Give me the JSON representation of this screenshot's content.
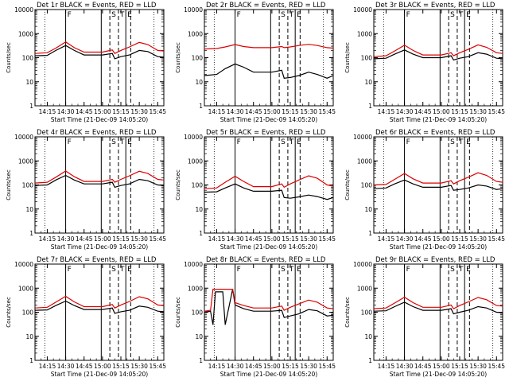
{
  "figure": {
    "title_suffix": "BLACK = Events, RED = LLD",
    "xlabel": "Start Time (21-Dec-09 14:05:20)",
    "ylabel": "Counts/sec",
    "x_tick_labels": [
      "14:15",
      "14:30",
      "14:45",
      "15:00",
      "15:15",
      "15:30",
      "15:45"
    ],
    "y_tick_labels": [
      "1",
      "10",
      "100",
      "1000",
      "10000"
    ],
    "marker_labels": [
      "F",
      "S",
      "T",
      "E"
    ],
    "colors": {
      "events": "#000000",
      "lld": "#dd0000",
      "axes": "#000000"
    }
  },
  "chart_data": [
    {
      "type": "line",
      "title": "Det 1r",
      "ylim": [
        1,
        10000
      ],
      "y_scale": "log",
      "x_range": [
        "14:05",
        "15:50"
      ],
      "x_tick_labels": [
        "14:15",
        "14:30",
        "14:45",
        "15:00",
        "15:15",
        "15:30",
        "15:45"
      ],
      "y_tick_labels": [
        "1",
        "10",
        "100",
        "1000",
        "10000"
      ],
      "markers": [
        {
          "label": "F",
          "time": "14:30"
        },
        {
          "label": "S",
          "time": "15:06"
        },
        {
          "label": "T",
          "time": "15:13"
        },
        {
          "label": "E",
          "time": "15:19"
        }
      ],
      "x": [
        "14:05",
        "14:15",
        "14:22",
        "14:30",
        "14:37",
        "14:45",
        "15:00",
        "15:08",
        "15:10",
        "15:15",
        "15:22",
        "15:30",
        "15:37",
        "15:45",
        "15:50"
      ],
      "series": [
        {
          "name": "Events",
          "values": [
            120,
            125,
            200,
            320,
            200,
            130,
            130,
            150,
            90,
            110,
            130,
            200,
            180,
            110,
            105
          ]
        },
        {
          "name": "LLD",
          "values": [
            150,
            160,
            250,
            450,
            260,
            170,
            170,
            210,
            150,
            200,
            280,
            430,
            350,
            200,
            190
          ]
        }
      ]
    },
    {
      "type": "line",
      "title": "Det 2r",
      "ylim": [
        1,
        10000
      ],
      "y_scale": "log",
      "x_range": [
        "14:05",
        "15:50"
      ],
      "x_tick_labels": [
        "14:15",
        "14:30",
        "14:45",
        "15:00",
        "15:15",
        "15:30",
        "15:45"
      ],
      "y_tick_labels": [
        "1",
        "10",
        "100",
        "1000",
        "10000"
      ],
      "markers": [
        {
          "label": "F",
          "time": "14:30"
        },
        {
          "label": "S",
          "time": "15:06"
        },
        {
          "label": "T",
          "time": "15:13"
        },
        {
          "label": "E",
          "time": "15:19"
        }
      ],
      "x": [
        "14:05",
        "14:15",
        "14:22",
        "14:30",
        "14:37",
        "14:45",
        "15:00",
        "15:08",
        "15:10",
        "15:15",
        "15:22",
        "15:30",
        "15:37",
        "15:45",
        "15:50"
      ],
      "series": [
        {
          "name": "Events",
          "values": [
            18,
            20,
            35,
            55,
            40,
            25,
            25,
            30,
            14,
            15,
            18,
            25,
            20,
            14,
            18
          ]
        },
        {
          "name": "LLD",
          "values": [
            230,
            240,
            280,
            350,
            290,
            260,
            260,
            290,
            260,
            280,
            320,
            360,
            320,
            260,
            250
          ]
        }
      ]
    },
    {
      "type": "line",
      "title": "Det 3r",
      "ylim": [
        1,
        10000
      ],
      "y_scale": "log",
      "x_range": [
        "14:05",
        "15:50"
      ],
      "x_tick_labels": [
        "14:15",
        "14:30",
        "14:45",
        "15:00",
        "15:15",
        "15:30",
        "15:45"
      ],
      "y_tick_labels": [
        "1",
        "10",
        "100",
        "1000",
        "10000"
      ],
      "markers": [
        {
          "label": "F",
          "time": "14:30"
        },
        {
          "label": "S",
          "time": "15:06"
        },
        {
          "label": "T",
          "time": "15:13"
        },
        {
          "label": "E",
          "time": "15:19"
        }
      ],
      "x": [
        "14:05",
        "14:15",
        "14:22",
        "14:30",
        "14:37",
        "14:45",
        "15:00",
        "15:08",
        "15:10",
        "15:15",
        "15:22",
        "15:30",
        "15:37",
        "15:45",
        "15:50"
      ],
      "series": [
        {
          "name": "Events",
          "values": [
            90,
            95,
            140,
            210,
            140,
            100,
            100,
            120,
            80,
            95,
            110,
            160,
            140,
            95,
            90
          ]
        },
        {
          "name": "LLD",
          "values": [
            110,
            120,
            190,
            330,
            200,
            130,
            130,
            160,
            120,
            160,
            220,
            340,
            270,
            160,
            150
          ]
        }
      ]
    },
    {
      "type": "line",
      "title": "Det 4r",
      "ylim": [
        1,
        10000
      ],
      "y_scale": "log",
      "x_range": [
        "14:05",
        "15:50"
      ],
      "x_tick_labels": [
        "14:15",
        "14:30",
        "14:45",
        "15:00",
        "15:15",
        "15:30",
        "15:45"
      ],
      "y_tick_labels": [
        "1",
        "10",
        "100",
        "1000",
        "10000"
      ],
      "markers": [
        {
          "label": "F",
          "time": "14:30"
        },
        {
          "label": "S",
          "time": "15:06"
        },
        {
          "label": "T",
          "time": "15:13"
        },
        {
          "label": "E",
          "time": "15:19"
        }
      ],
      "x": [
        "14:05",
        "14:15",
        "14:22",
        "14:30",
        "14:37",
        "14:45",
        "15:00",
        "15:08",
        "15:10",
        "15:15",
        "15:22",
        "15:30",
        "15:37",
        "15:45",
        "15:50"
      ],
      "series": [
        {
          "name": "Events",
          "values": [
            95,
            100,
            160,
            250,
            160,
            110,
            110,
            130,
            80,
            95,
            110,
            170,
            150,
            100,
            95
          ]
        },
        {
          "name": "LLD",
          "values": [
            120,
            130,
            210,
            380,
            220,
            140,
            140,
            170,
            130,
            170,
            240,
            370,
            300,
            170,
            160
          ]
        }
      ]
    },
    {
      "type": "line",
      "title": "Det 5r",
      "ylim": [
        1,
        10000
      ],
      "y_scale": "log",
      "x_range": [
        "14:05",
        "15:50"
      ],
      "x_tick_labels": [
        "14:15",
        "14:30",
        "14:45",
        "15:00",
        "15:15",
        "15:30",
        "15:45"
      ],
      "y_tick_labels": [
        "1",
        "10",
        "100",
        "1000",
        "10000"
      ],
      "markers": [
        {
          "label": "F",
          "time": "14:30"
        },
        {
          "label": "S",
          "time": "15:06"
        },
        {
          "label": "T",
          "time": "15:13"
        },
        {
          "label": "E",
          "time": "15:19"
        }
      ],
      "x": [
        "14:05",
        "14:15",
        "14:22",
        "14:30",
        "14:37",
        "14:45",
        "15:00",
        "15:08",
        "15:10",
        "15:15",
        "15:22",
        "15:30",
        "15:37",
        "15:45",
        "15:50"
      ],
      "series": [
        {
          "name": "Events",
          "values": [
            50,
            52,
            75,
            110,
            75,
            55,
            55,
            60,
            30,
            28,
            32,
            38,
            33,
            25,
            30
          ]
        },
        {
          "name": "LLD",
          "values": [
            70,
            75,
            130,
            230,
            140,
            85,
            85,
            110,
            80,
            110,
            160,
            240,
            190,
            100,
            90
          ]
        }
      ]
    },
    {
      "type": "line",
      "title": "Det 6r",
      "ylim": [
        1,
        10000
      ],
      "y_scale": "log",
      "x_range": [
        "14:05",
        "15:50"
      ],
      "x_tick_labels": [
        "14:15",
        "14:30",
        "14:45",
        "15:00",
        "15:15",
        "15:30",
        "15:45"
      ],
      "y_tick_labels": [
        "1",
        "10",
        "100",
        "1000",
        "10000"
      ],
      "markers": [
        {
          "label": "F",
          "time": "14:30"
        },
        {
          "label": "S",
          "time": "15:06"
        },
        {
          "label": "T",
          "time": "15:13"
        },
        {
          "label": "E",
          "time": "15:19"
        }
      ],
      "x": [
        "14:05",
        "14:15",
        "14:22",
        "14:30",
        "14:37",
        "14:45",
        "15:00",
        "15:08",
        "15:10",
        "15:15",
        "15:22",
        "15:30",
        "15:37",
        "15:45",
        "15:50"
      ],
      "series": [
        {
          "name": "Events",
          "values": [
            70,
            75,
            110,
            160,
            110,
            80,
            80,
            95,
            60,
            65,
            75,
            100,
            90,
            65,
            70
          ]
        },
        {
          "name": "LLD",
          "values": [
            100,
            105,
            170,
            300,
            180,
            120,
            120,
            150,
            110,
            150,
            210,
            320,
            250,
            140,
            130
          ]
        }
      ]
    },
    {
      "type": "line",
      "title": "Det 7r",
      "ylim": [
        1,
        10000
      ],
      "y_scale": "log",
      "x_range": [
        "14:05",
        "15:50"
      ],
      "x_tick_labels": [
        "14:15",
        "14:30",
        "14:45",
        "15:00",
        "15:15",
        "15:30",
        "15:45"
      ],
      "y_tick_labels": [
        "1",
        "10",
        "100",
        "1000",
        "10000"
      ],
      "markers": [
        {
          "label": "F",
          "time": "14:30"
        },
        {
          "label": "S",
          "time": "15:06"
        },
        {
          "label": "T",
          "time": "15:13"
        },
        {
          "label": "E",
          "time": "15:19"
        }
      ],
      "x": [
        "14:05",
        "14:15",
        "14:22",
        "14:30",
        "14:37",
        "14:45",
        "15:00",
        "15:08",
        "15:10",
        "15:15",
        "15:22",
        "15:30",
        "15:37",
        "15:45",
        "15:50"
      ],
      "series": [
        {
          "name": "Events",
          "values": [
            120,
            125,
            190,
            290,
            190,
            130,
            130,
            150,
            90,
            105,
            120,
            180,
            160,
            110,
            105
          ]
        },
        {
          "name": "LLD",
          "values": [
            150,
            160,
            260,
            460,
            270,
            170,
            170,
            210,
            150,
            200,
            280,
            440,
            360,
            200,
            190
          ]
        }
      ]
    },
    {
      "type": "line",
      "title": "Det 8r",
      "ylim": [
        1,
        10000
      ],
      "y_scale": "log",
      "x_range": [
        "14:05",
        "15:50"
      ],
      "x_tick_labels": [
        "14:15",
        "14:30",
        "14:45",
        "15:00",
        "15:15",
        "15:30",
        "15:45"
      ],
      "y_tick_labels": [
        "1",
        "10",
        "100",
        "1000",
        "10000"
      ],
      "markers": [
        {
          "label": "F",
          "time": "14:30"
        },
        {
          "label": "S",
          "time": "15:06"
        },
        {
          "label": "T",
          "time": "15:13"
        },
        {
          "label": "E",
          "time": "15:19"
        }
      ],
      "x": [
        "14:05",
        "14:10",
        "14:12",
        "14:14",
        "14:20",
        "14:22",
        "14:28",
        "14:30",
        "14:37",
        "14:45",
        "15:00",
        "15:08",
        "15:10",
        "15:15",
        "15:22",
        "15:30",
        "15:37",
        "15:45",
        "15:50"
      ],
      "series": [
        {
          "name": "Events",
          "values": [
            100,
            110,
            30,
            700,
            700,
            30,
            900,
            200,
            140,
            110,
            110,
            120,
            60,
            70,
            85,
            130,
            115,
            70,
            75
          ]
        },
        {
          "name": "LLD",
          "values": [
            110,
            120,
            900,
            900,
            900,
            900,
            900,
            250,
            190,
            150,
            150,
            180,
            120,
            160,
            220,
            320,
            260,
            150,
            140
          ]
        }
      ]
    },
    {
      "type": "line",
      "title": "Det 9r",
      "ylim": [
        1,
        10000
      ],
      "y_scale": "log",
      "x_range": [
        "14:05",
        "15:50"
      ],
      "x_tick_labels": [
        "14:15",
        "14:30",
        "14:45",
        "15:00",
        "15:15",
        "15:30",
        "15:45"
      ],
      "y_tick_labels": [
        "1",
        "10",
        "100",
        "1000",
        "10000"
      ],
      "markers": [
        {
          "label": "F",
          "time": "14:30"
        },
        {
          "label": "S",
          "time": "15:06"
        },
        {
          "label": "T",
          "time": "15:13"
        },
        {
          "label": "E",
          "time": "15:19"
        }
      ],
      "x": [
        "14:05",
        "14:15",
        "14:22",
        "14:30",
        "14:37",
        "14:45",
        "15:00",
        "15:08",
        "15:10",
        "15:15",
        "15:22",
        "15:30",
        "15:37",
        "15:45",
        "15:50"
      ],
      "series": [
        {
          "name": "Events",
          "values": [
            110,
            115,
            170,
            260,
            170,
            120,
            120,
            140,
            85,
            100,
            120,
            170,
            150,
            100,
            95
          ]
        },
        {
          "name": "LLD",
          "values": [
            140,
            150,
            240,
            420,
            250,
            160,
            160,
            200,
            140,
            190,
            270,
            410,
            330,
            190,
            180
          ]
        }
      ]
    }
  ]
}
